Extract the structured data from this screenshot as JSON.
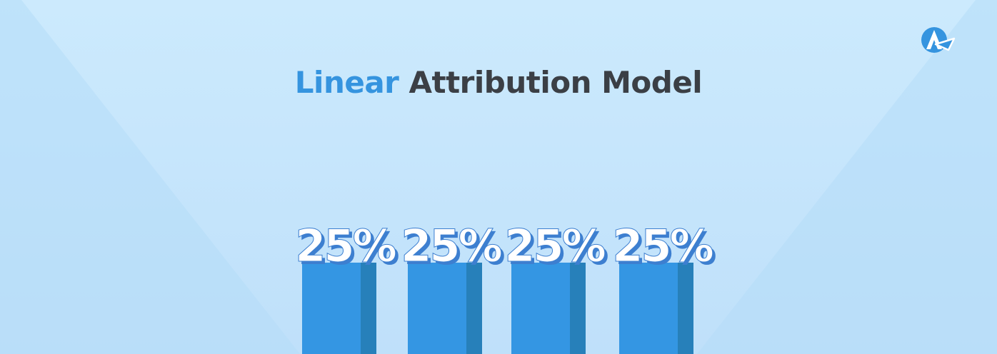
{
  "title": {
    "highlight": "Linear",
    "rest": "Attribution Model"
  },
  "logo": {
    "icon": "a-logo-icon",
    "color": "#3594df"
  },
  "colors": {
    "bar_front": "#3496e3",
    "bar_side": "#2780ba",
    "label_fill": "#ffffff",
    "label_shadow": "#3d7fd0"
  },
  "chart_data": {
    "type": "bar",
    "categories": [
      "",
      "",
      "",
      ""
    ],
    "values": [
      25,
      25,
      25,
      25
    ],
    "data_labels": [
      "25%",
      "25%",
      "25%",
      "25%"
    ],
    "title": "Linear Attribution Model",
    "xlabel": "",
    "ylabel": "",
    "ylim": [
      0,
      25
    ],
    "grid": false,
    "legend": "none"
  }
}
